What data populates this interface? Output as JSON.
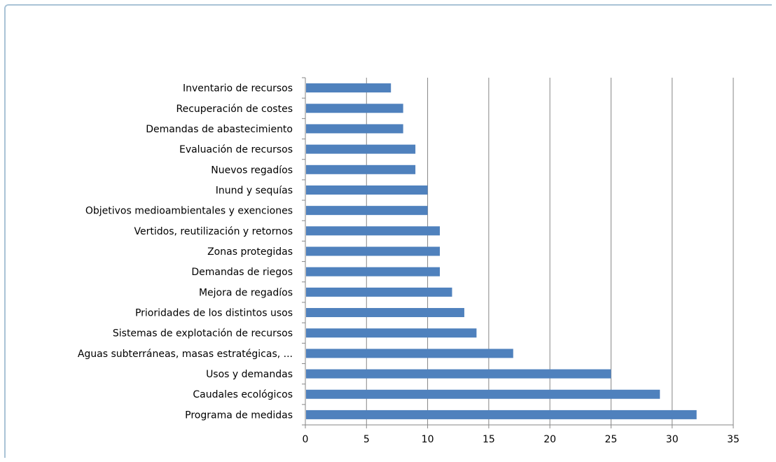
{
  "chart_data": {
    "type": "bar",
    "orientation": "horizontal",
    "title": "",
    "xlabel": "",
    "ylabel": "",
    "xlim": [
      0,
      35
    ],
    "xticks": [
      "0",
      "5",
      "10",
      "15",
      "20",
      "25",
      "30",
      "35"
    ],
    "grid": "vertical major gridlines",
    "legend": "none",
    "bar_color": "#4f81bd",
    "categories": [
      "Inventario de recursos",
      "Recuperación de costes",
      "Demandas de abastecimiento",
      "Evaluación de recursos",
      "Nuevos regadíos",
      "Inund y sequías",
      "Objetivos medioambientales y exenciones",
      "Vertidos, reutilización y retornos",
      "Zonas protegidas",
      "Demandas de riegos",
      "Mejora de regadíos",
      "Prioridades de los distintos usos",
      "Sistemas de explotación de recursos",
      "Aguas subterráneas, masas estratégicas, ...",
      "Usos y demandas",
      "Caudales ecológicos",
      "Programa de medidas"
    ],
    "values": [
      7,
      8,
      8,
      9,
      9,
      10,
      10,
      11,
      11,
      11,
      12,
      13,
      14,
      17,
      25,
      29,
      32
    ]
  }
}
